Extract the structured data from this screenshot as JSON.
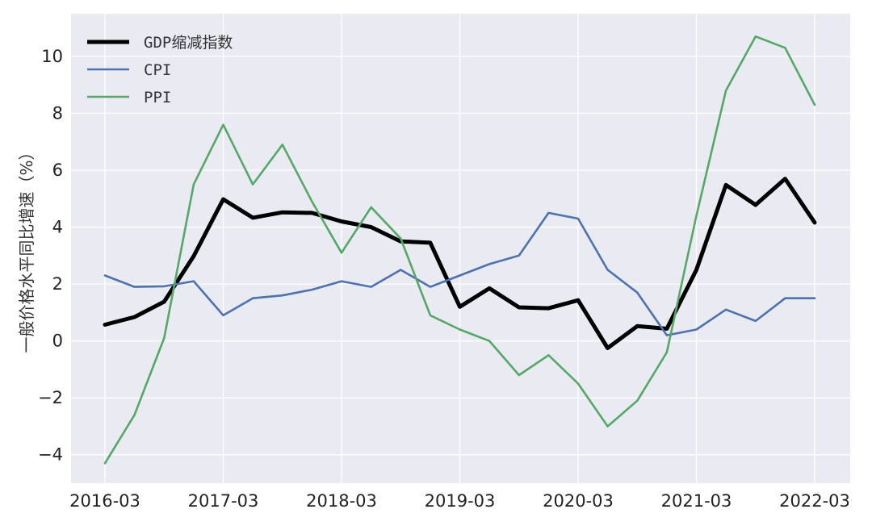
{
  "chart_data": {
    "type": "line",
    "title": "",
    "xlabel": "",
    "ylabel": "一般价格水平同比增速（%）",
    "x": [
      "2016-03",
      "2016-06",
      "2016-09",
      "2016-12",
      "2017-03",
      "2017-06",
      "2017-09",
      "2017-12",
      "2018-03",
      "2018-06",
      "2018-09",
      "2018-12",
      "2019-03",
      "2019-06",
      "2019-09",
      "2019-12",
      "2020-03",
      "2020-06",
      "2020-09",
      "2020-12",
      "2021-03",
      "2021-06",
      "2021-09",
      "2021-12",
      "2022-03"
    ],
    "x_tick_labels": [
      "2016-03",
      "2017-03",
      "2018-03",
      "2019-03",
      "2020-03",
      "2021-03",
      "2022-03"
    ],
    "y_ticks": [
      -4,
      -2,
      0,
      2,
      4,
      6,
      8,
      10
    ],
    "y_tick_labels": [
      "−4",
      "−2",
      "0",
      "2",
      "4",
      "6",
      "8",
      "10"
    ],
    "ylim": [
      -5,
      11.5
    ],
    "grid": true,
    "legend_position": "top-left",
    "series": [
      {
        "name": "GDP缩减指数",
        "color": "#000000",
        "width": "thick",
        "values": [
          0.57,
          0.84,
          1.38,
          2.98,
          4.98,
          4.33,
          4.52,
          4.5,
          4.2,
          4.0,
          3.5,
          3.45,
          1.2,
          1.85,
          1.18,
          1.15,
          1.43,
          -0.25,
          0.52,
          0.43,
          2.5,
          5.48,
          4.78,
          5.7,
          4.16
        ]
      },
      {
        "name": "CPI",
        "color": "#4C72B0",
        "width": "normal",
        "values": [
          2.3,
          1.9,
          1.92,
          2.1,
          0.9,
          1.5,
          1.6,
          1.8,
          2.1,
          1.9,
          2.5,
          1.9,
          2.3,
          2.7,
          3.0,
          4.5,
          4.3,
          2.5,
          1.7,
          0.2,
          0.4,
          1.1,
          0.7,
          1.5,
          1.5
        ]
      },
      {
        "name": "PPI",
        "color": "#55A868",
        "width": "normal",
        "values": [
          -4.3,
          -2.6,
          0.1,
          5.5,
          7.6,
          5.5,
          6.9,
          4.9,
          3.1,
          4.7,
          3.6,
          0.9,
          0.4,
          0.0,
          -1.2,
          -0.5,
          -1.5,
          -3.0,
          -2.1,
          -0.4,
          4.4,
          8.8,
          10.7,
          10.3,
          8.3
        ]
      }
    ],
    "colors": {
      "plot_background": "#EAEAF2",
      "grid": "#FFFFFF",
      "tick_text": "#222222"
    }
  }
}
